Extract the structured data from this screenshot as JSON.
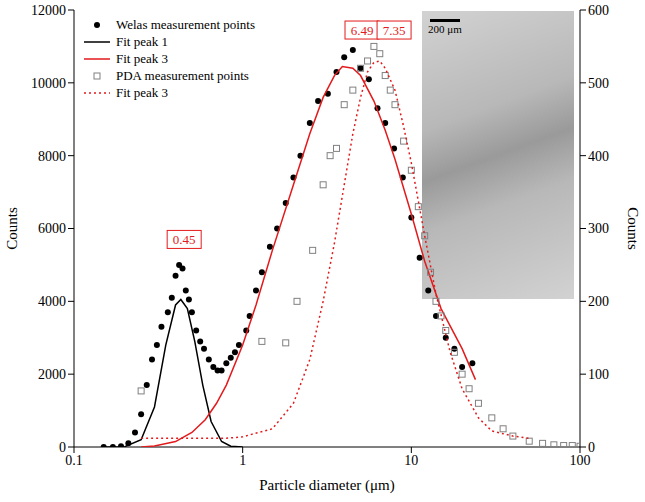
{
  "chart_data": {
    "type": "scatter",
    "xlabel": "Particle diameter (μm)",
    "ylabel": "Counts",
    "y2label": "Counts",
    "log": "x",
    "xlim": [
      0.1,
      100
    ],
    "xticks": [
      0.1,
      1,
      10,
      100
    ],
    "ylim": [
      0,
      12000
    ],
    "yticks": [
      0,
      2000,
      4000,
      6000,
      8000,
      10000,
      12000
    ],
    "y2lim": [
      0,
      600
    ],
    "y2ticks": [
      0,
      100,
      200,
      300,
      400,
      500,
      600
    ],
    "legend": "upper left",
    "series": [
      {
        "name": "Welas measurement points",
        "type": "scatter",
        "marker": "circle",
        "color": "#000000",
        "axis": "y",
        "x": [
          0.15,
          0.17,
          0.19,
          0.21,
          0.23,
          0.25,
          0.27,
          0.29,
          0.31,
          0.33,
          0.36,
          0.38,
          0.4,
          0.42,
          0.44,
          0.46,
          0.48,
          0.5,
          0.53,
          0.56,
          0.59,
          0.63,
          0.67,
          0.71,
          0.75,
          0.8,
          0.85,
          0.9,
          0.95,
          1.05,
          1.1,
          1.2,
          1.3,
          1.45,
          1.6,
          1.8,
          2.0,
          2.2,
          2.5,
          2.8,
          3.2,
          3.6,
          4.0,
          4.5,
          5.0,
          5.6,
          6.3,
          7.0,
          7.9,
          8.9,
          10,
          11.2,
          12.6,
          14,
          16,
          18,
          20,
          23
        ],
        "values": [
          0,
          0,
          20,
          100,
          400,
          900,
          1700,
          2400,
          2800,
          3300,
          3700,
          4100,
          4700,
          5000,
          4900,
          4300,
          4050,
          3700,
          3200,
          2900,
          2700,
          2400,
          2200,
          2100,
          2100,
          2300,
          2450,
          2600,
          2800,
          3200,
          3600,
          4300,
          4800,
          5500,
          6000,
          6700,
          7400,
          8000,
          8900,
          9500,
          9700,
          10300,
          10700,
          10900,
          10400,
          10100,
          9300,
          8900,
          8200,
          7400,
          6300,
          5200,
          4300,
          3600,
          3000,
          2700,
          2200,
          2300
        ]
      },
      {
        "name": "Fit peak 1",
        "type": "line",
        "line_style": "solid",
        "color": "#000000",
        "axis": "y",
        "x": [
          0.15,
          0.2,
          0.25,
          0.3,
          0.35,
          0.4,
          0.43,
          0.47,
          0.52,
          0.58,
          0.65,
          0.75,
          0.85,
          1.0
        ],
        "values": [
          0,
          10,
          200,
          1100,
          2800,
          3900,
          4050,
          3800,
          2900,
          1700,
          700,
          150,
          20,
          0
        ]
      },
      {
        "name": "Fit peak 3",
        "type": "line",
        "line_style": "solid",
        "color": "#e31a1c",
        "axis": "y",
        "x": [
          0.25,
          0.3,
          0.4,
          0.5,
          0.6,
          0.7,
          0.8,
          1.0,
          1.2,
          1.5,
          2,
          2.5,
          3,
          3.5,
          3.9,
          4.5,
          5,
          6,
          7,
          8,
          10,
          12,
          15,
          20,
          24
        ],
        "values": [
          0,
          30,
          150,
          400,
          750,
          1200,
          1700,
          2800,
          3900,
          5400,
          7200,
          8600,
          9600,
          10200,
          10450,
          10400,
          10200,
          9500,
          8700,
          7900,
          6400,
          5100,
          3800,
          2700,
          1850
        ]
      },
      {
        "name": "PDA measurement points",
        "type": "scatter",
        "marker": "square_open",
        "color": "#808080",
        "axis": "y2",
        "x": [
          0.25,
          1.3,
          1.8,
          2.1,
          2.6,
          3,
          3.3,
          3.6,
          4,
          4.5,
          5,
          5.5,
          6,
          6.5,
          7,
          7.5,
          8,
          9,
          10,
          11,
          12,
          13,
          14,
          15,
          16,
          18,
          20,
          22,
          25,
          30,
          35,
          40,
          50,
          60,
          70,
          80,
          90,
          100
        ],
        "values": [
          77,
          145,
          143,
          200,
          270,
          360,
          400,
          410,
          470,
          490,
          520,
          530,
          550,
          540,
          510,
          490,
          470,
          420,
          380,
          330,
          290,
          240,
          200,
          180,
          160,
          130,
          100,
          80,
          60,
          40,
          25,
          15,
          8,
          5,
          3,
          2,
          2,
          1
        ]
      },
      {
        "name": "Fit peak 3",
        "type": "line",
        "line_style": "dotted",
        "color": "#e31a1c",
        "axis": "y2",
        "x": [
          0.25,
          0.5,
          0.8,
          1.0,
          1.5,
          2,
          2.5,
          3,
          3.5,
          4,
          4.5,
          5,
          5.5,
          6,
          6.5,
          7,
          8,
          9,
          10,
          12,
          14,
          17,
          20,
          25,
          30,
          40,
          50
        ],
        "values": [
          12,
          12,
          12,
          14,
          25,
          60,
          120,
          200,
          280,
          360,
          430,
          480,
          515,
          528,
          530,
          520,
          490,
          440,
          390,
          290,
          210,
          130,
          80,
          40,
          22,
          15,
          12
        ]
      }
    ],
    "annotations": [
      {
        "text": "0.45",
        "x": 0.45,
        "y": 5700
      },
      {
        "text": "6.49",
        "x": 5.1,
        "y": 11450
      },
      {
        "text": "7.35",
        "x": 7.9,
        "y": 11450
      }
    ],
    "inset": {
      "scale_label": "200 μm"
    }
  }
}
